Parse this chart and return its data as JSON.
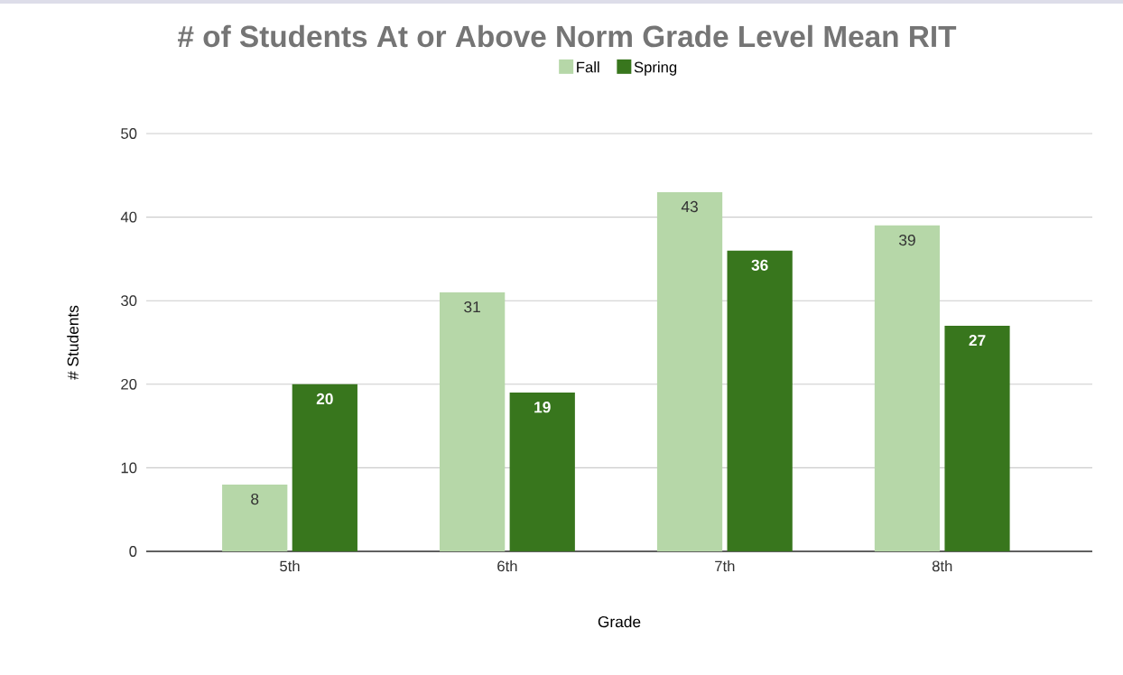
{
  "chart_data": {
    "type": "bar",
    "title": "# of Students At or Above Norm Grade Level Mean RIT",
    "xlabel": "Grade",
    "ylabel": "# Students",
    "categories": [
      "5th",
      "6th",
      "7th",
      "8th"
    ],
    "series": [
      {
        "name": "Fall",
        "color": "#b6d7a8",
        "values": [
          8,
          31,
          43,
          39
        ]
      },
      {
        "name": "Spring",
        "color": "#38761d",
        "values": [
          20,
          19,
          36,
          27
        ]
      }
    ],
    "ylim": [
      0,
      50
    ],
    "yticks": [
      0,
      10,
      20,
      30,
      40,
      50
    ],
    "grid": "y",
    "legend": "top",
    "data_labels": true
  }
}
